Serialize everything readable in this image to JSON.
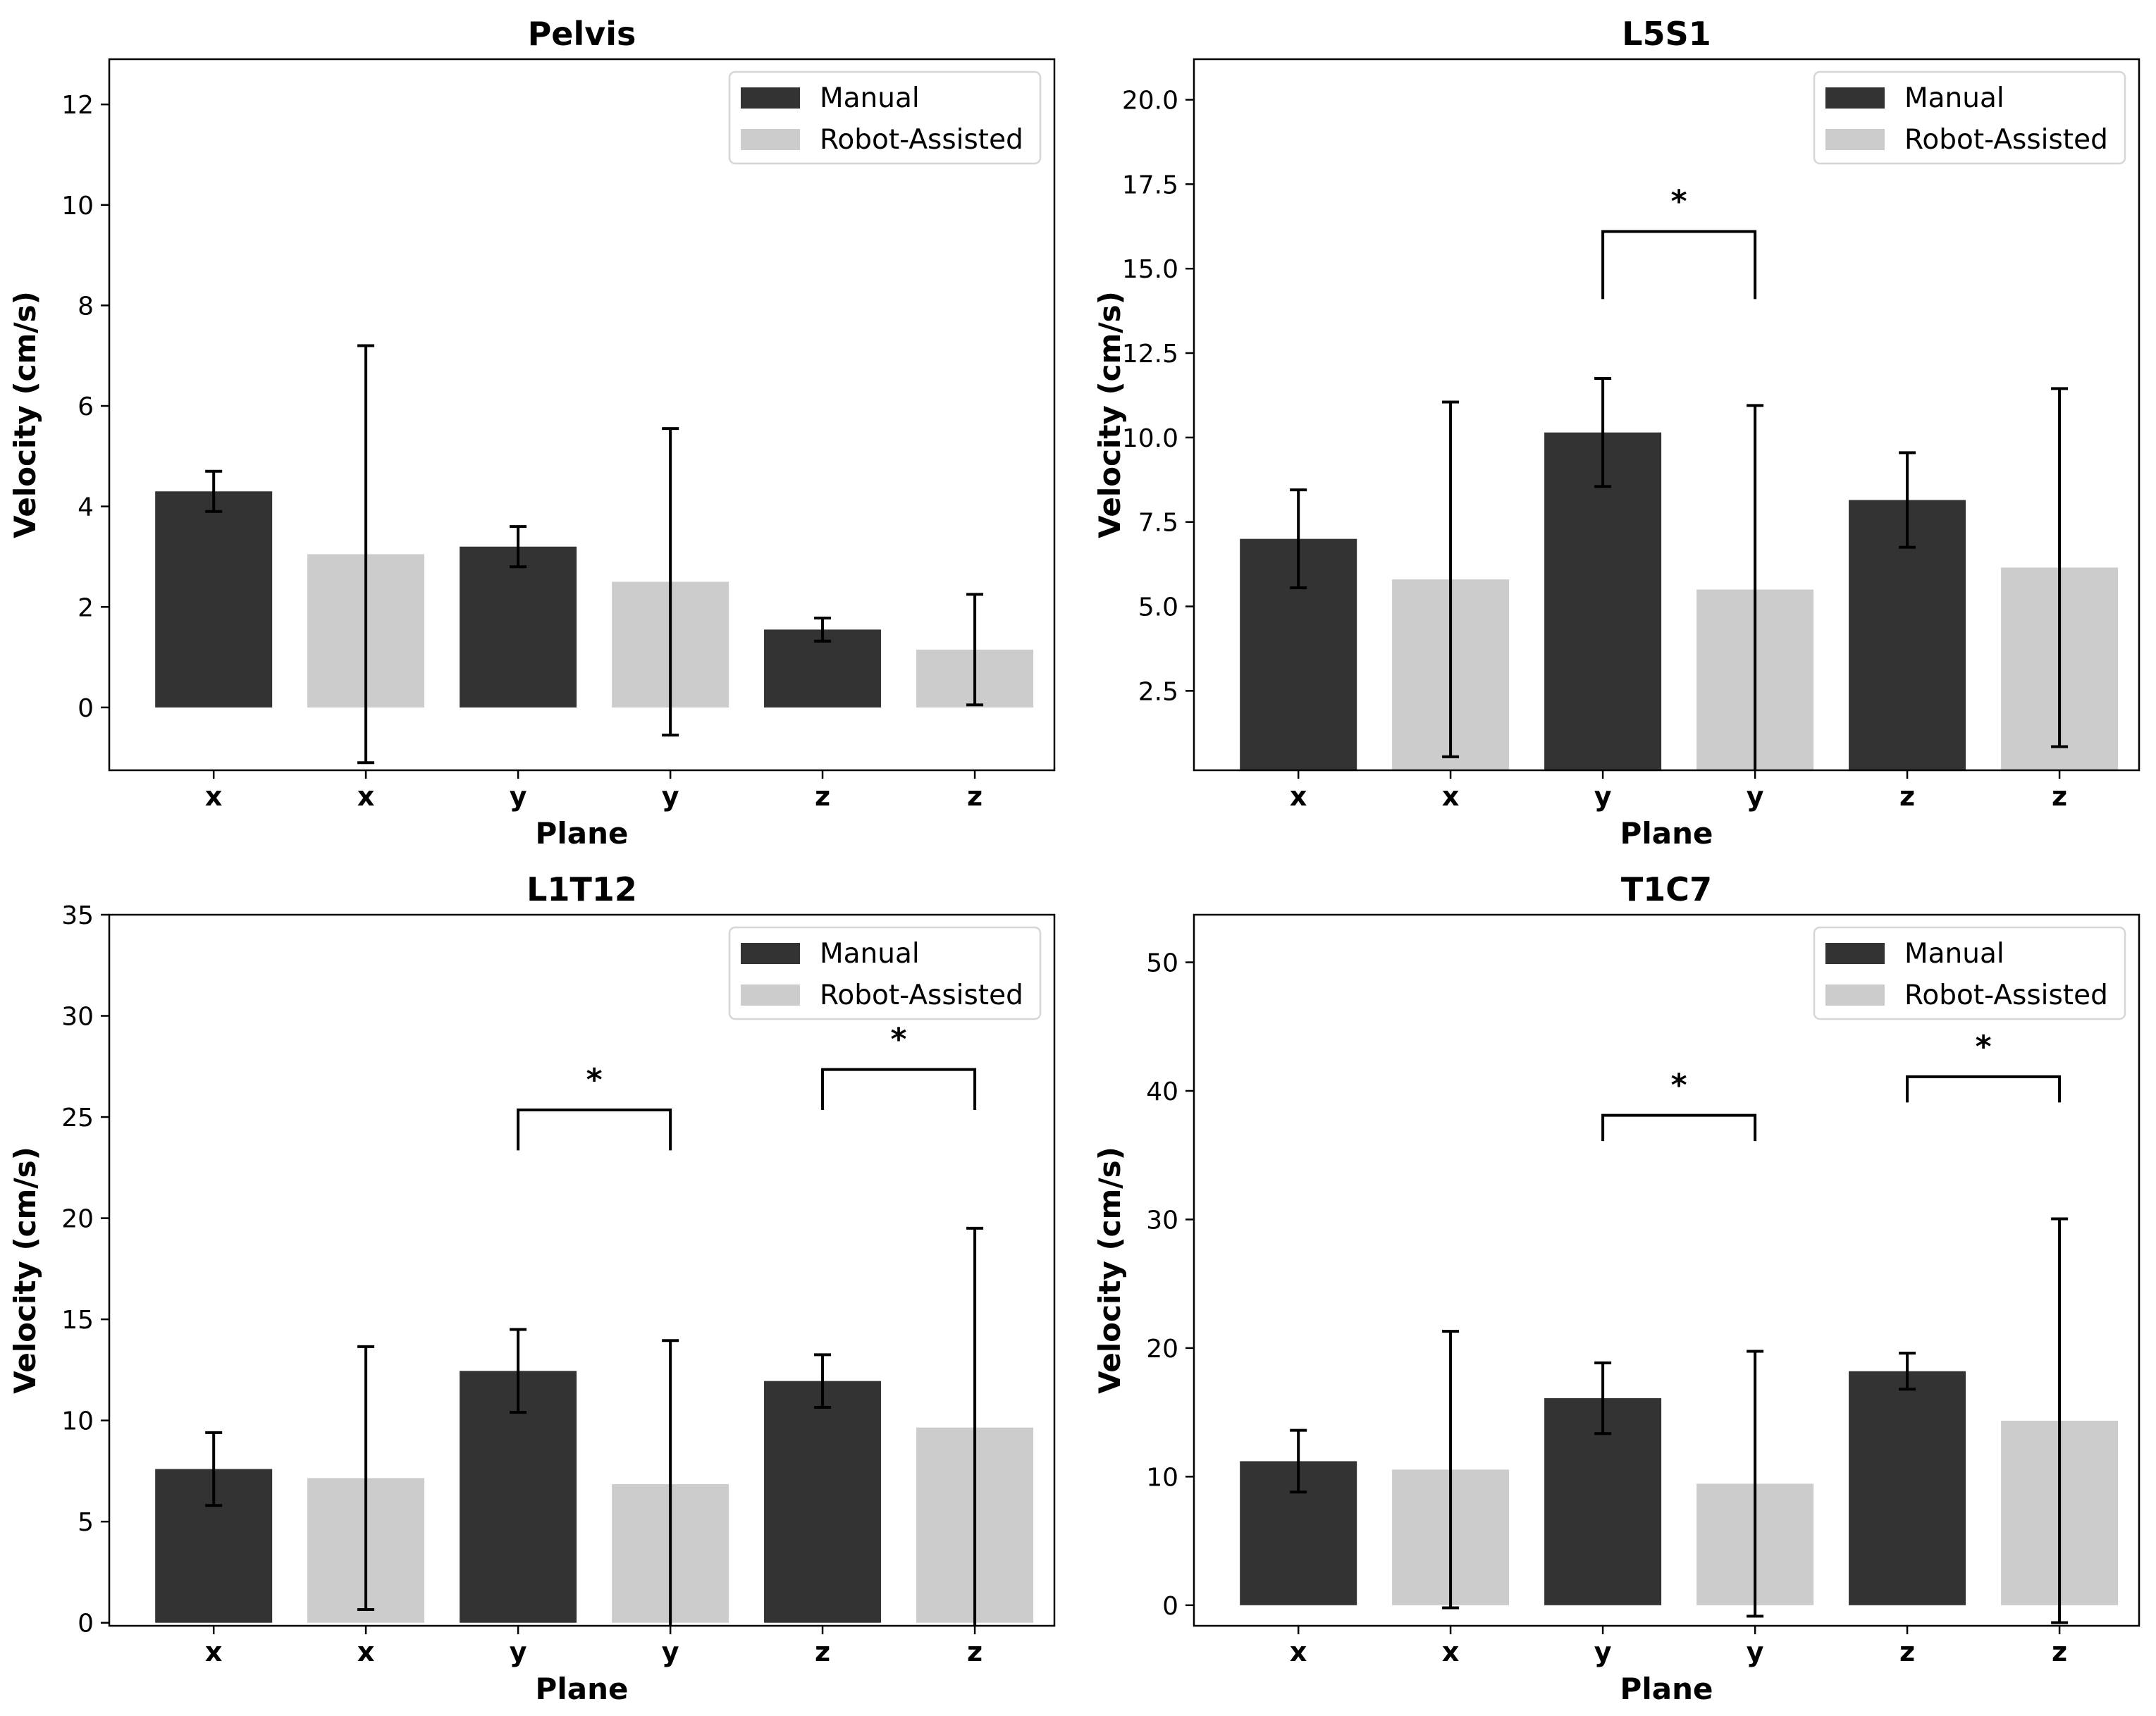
{
  "chart_data": [
    {
      "type": "bar",
      "title": "Pelvis",
      "xlabel": "Plane",
      "ylabel": "Velocity (cm/s)",
      "categories": [
        "x",
        "x",
        "y",
        "y",
        "z",
        "z"
      ],
      "groups": [
        "Manual",
        "Robot-Assisted",
        "Manual",
        "Robot-Assisted",
        "Manual",
        "Robot-Assisted"
      ],
      "values": [
        4.3,
        3.05,
        3.2,
        2.5,
        1.55,
        1.15
      ],
      "errors": [
        0.4,
        4.15,
        0.4,
        3.05,
        0.23,
        1.1
      ],
      "ylim": [
        -1.25,
        12.9
      ],
      "yticks": [
        0,
        2,
        4,
        6,
        8,
        10,
        12
      ],
      "ytick_labels": [
        "0",
        "2",
        "4",
        "6",
        "8",
        "10",
        "12"
      ],
      "legend": {
        "position": "top-right",
        "entries": [
          "Manual",
          "Robot-Assisted"
        ]
      },
      "significance": []
    },
    {
      "type": "bar",
      "title": "L5S1",
      "xlabel": "Plane",
      "ylabel": "Velocity (cm/s)",
      "categories": [
        "x",
        "x",
        "y",
        "y",
        "z",
        "z"
      ],
      "groups": [
        "Manual",
        "Robot-Assisted",
        "Manual",
        "Robot-Assisted",
        "Manual",
        "Robot-Assisted"
      ],
      "values": [
        7.0,
        5.8,
        10.15,
        5.5,
        8.15,
        6.15
      ],
      "errors": [
        1.45,
        5.25,
        1.6,
        5.45,
        1.4,
        5.3
      ],
      "ylim": [
        0.15,
        21.2
      ],
      "yticks": [
        2.5,
        5.0,
        7.5,
        10.0,
        12.5,
        15.0,
        17.5,
        20.0
      ],
      "ytick_labels": [
        "2.5",
        "5.0",
        "7.5",
        "10.0",
        "12.5",
        "15.0",
        "17.5",
        "20.0"
      ],
      "legend": {
        "position": "top-right",
        "entries": [
          "Manual",
          "Robot-Assisted"
        ]
      },
      "significance": [
        {
          "from": 2,
          "to": 3,
          "y": 16.1,
          "leg": 14.1,
          "label": "*"
        }
      ]
    },
    {
      "type": "bar",
      "title": "L1T12",
      "xlabel": "Plane",
      "ylabel": "Velocity (cm/s)",
      "categories": [
        "x",
        "x",
        "y",
        "y",
        "z",
        "z"
      ],
      "groups": [
        "Manual",
        "Robot-Assisted",
        "Manual",
        "Robot-Assisted",
        "Manual",
        "Robot-Assisted"
      ],
      "values": [
        7.6,
        7.15,
        12.45,
        6.85,
        11.95,
        9.65
      ],
      "errors": [
        1.8,
        6.5,
        2.05,
        7.1,
        1.3,
        9.85
      ],
      "ylim": [
        -0.15,
        35.0
      ],
      "yticks": [
        0,
        5,
        10,
        15,
        20,
        25,
        30,
        35
      ],
      "ytick_labels": [
        "0",
        "5",
        "10",
        "15",
        "20",
        "25",
        "30",
        "35"
      ],
      "legend": {
        "position": "top-right",
        "entries": [
          "Manual",
          "Robot-Assisted"
        ]
      },
      "significance": [
        {
          "from": 2,
          "to": 3,
          "y": 25.35,
          "leg": 23.35,
          "label": "*"
        },
        {
          "from": 4,
          "to": 5,
          "y": 27.35,
          "leg": 25.35,
          "label": "*"
        }
      ]
    },
    {
      "type": "bar",
      "title": "T1C7",
      "xlabel": "Plane",
      "ylabel": "Velocity (cm/s)",
      "categories": [
        "x",
        "x",
        "y",
        "y",
        "z",
        "z"
      ],
      "groups": [
        "Manual",
        "Robot-Assisted",
        "Manual",
        "Robot-Assisted",
        "Manual",
        "Robot-Assisted"
      ],
      "values": [
        11.2,
        10.55,
        16.1,
        9.45,
        18.2,
        14.35
      ],
      "errors": [
        2.4,
        10.75,
        2.75,
        10.3,
        1.4,
        15.7
      ],
      "ylim": [
        -1.6,
        53.7
      ],
      "yticks": [
        0,
        10,
        20,
        30,
        40,
        50
      ],
      "ytick_labels": [
        "0",
        "10",
        "20",
        "30",
        "40",
        "50"
      ],
      "legend": {
        "position": "top-right",
        "entries": [
          "Manual",
          "Robot-Assisted"
        ]
      },
      "significance": [
        {
          "from": 2,
          "to": 3,
          "y": 38.1,
          "leg": 36.1,
          "label": "*"
        },
        {
          "from": 4,
          "to": 5,
          "y": 41.1,
          "leg": 39.1,
          "label": "*"
        }
      ]
    }
  ],
  "colors": {
    "Manual": "#333333",
    "Robot-Assisted": "#cccccc"
  }
}
